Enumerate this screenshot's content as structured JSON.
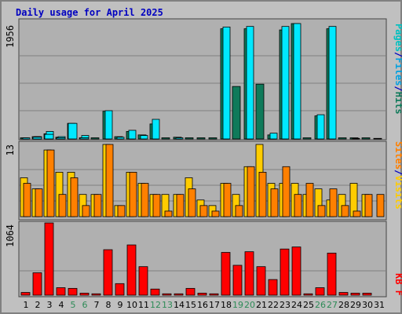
{
  "chart_data": [
    {
      "type": "bar",
      "title": "Daily usage for April 2025",
      "panel": "top",
      "y_max_label": "1956",
      "ylim": [
        0,
        2000
      ],
      "x": [
        "1",
        "2",
        "3",
        "4",
        "5",
        "6",
        "7",
        "8",
        "9",
        "10",
        "11",
        "12",
        "13",
        "14",
        "15",
        "16",
        "17",
        "18",
        "19",
        "20",
        "21",
        "22",
        "23",
        "24",
        "25",
        "26",
        "27",
        "28",
        "29",
        "30",
        "31"
      ],
      "series": [
        {
          "name": "Pages",
          "values": [
            20,
            40,
            130,
            40,
            0,
            60,
            0,
            490,
            30,
            150,
            60,
            340,
            0,
            20,
            0,
            0,
            0,
            1940,
            0,
            1950,
            0,
            100,
            1950,
            2000,
            0,
            420,
            1950,
            0,
            10,
            0,
            0
          ]
        },
        {
          "name": "Files",
          "values": [
            0,
            30,
            80,
            20,
            270,
            20,
            0,
            0,
            0,
            0,
            0,
            0,
            0,
            0,
            0,
            0,
            0,
            0,
            0,
            0,
            0,
            0,
            0,
            0,
            0,
            0,
            0,
            0,
            0,
            0,
            0
          ]
        },
        {
          "name": "Hits",
          "values": [
            20,
            40,
            90,
            30,
            270,
            20,
            20,
            480,
            40,
            130,
            70,
            260,
            20,
            30,
            20,
            20,
            20,
            1910,
            910,
            1910,
            950,
            70,
            1890,
            2000,
            20,
            400,
            1910,
            20,
            20,
            20,
            10
          ]
        }
      ],
      "legend": [
        "Pages",
        "/",
        "Files",
        "/",
        "Hits"
      ]
    },
    {
      "type": "bar",
      "panel": "middle",
      "y_max_label": "13",
      "ylim": [
        0,
        13
      ],
      "x": [
        "1",
        "2",
        "3",
        "4",
        "5",
        "6",
        "7",
        "8",
        "9",
        "10",
        "11",
        "12",
        "13",
        "14",
        "15",
        "16",
        "17",
        "18",
        "19",
        "20",
        "21",
        "22",
        "23",
        "24",
        "25",
        "26",
        "27",
        "28",
        "29",
        "30",
        "31"
      ],
      "series": [
        {
          "name": "Sites",
          "values": [
            6,
            5,
            12,
            4,
            7,
            2,
            4,
            13,
            2,
            8,
            6,
            4,
            1,
            4,
            5,
            2,
            1,
            6,
            2,
            9,
            8,
            5,
            9,
            4,
            6,
            2,
            5,
            2,
            1,
            4,
            4
          ]
        },
        {
          "name": "Visits",
          "values": [
            7,
            5,
            12,
            8,
            8,
            4,
            4,
            13,
            2,
            8,
            6,
            4,
            4,
            4,
            7,
            3,
            2,
            6,
            4,
            9,
            13,
            6,
            6,
            6,
            4,
            5,
            3,
            4,
            6,
            4,
            0
          ]
        }
      ],
      "legend": [
        "Sites",
        "/",
        "Visits"
      ]
    },
    {
      "type": "bar",
      "panel": "bottom",
      "y_max_label": "1064",
      "ylim": [
        0,
        1064
      ],
      "x": [
        "1",
        "2",
        "3",
        "4",
        "5",
        "6",
        "7",
        "8",
        "9",
        "10",
        "11",
        "12",
        "13",
        "14",
        "15",
        "16",
        "17",
        "18",
        "19",
        "20",
        "21",
        "22",
        "23",
        "24",
        "25",
        "26",
        "27",
        "28",
        "29",
        "30",
        "31"
      ],
      "series": [
        {
          "name": "KB F",
          "values": [
            40,
            330,
            1064,
            110,
            100,
            30,
            20,
            670,
            170,
            740,
            420,
            90,
            20,
            20,
            100,
            30,
            20,
            630,
            440,
            640,
            420,
            230,
            680,
            710,
            20,
            110,
            620,
            40,
            30,
            30,
            0
          ]
        }
      ],
      "legend": [
        "KB F"
      ]
    }
  ],
  "x_axis_labels": [
    "1",
    "2",
    "3",
    "4",
    "5",
    "6",
    "7",
    "8",
    "9",
    "10",
    "11",
    "12",
    "13",
    "14",
    "15",
    "16",
    "17",
    "18",
    "19",
    "20",
    "21",
    "22",
    "23",
    "24",
    "25",
    "26",
    "27",
    "28",
    "29",
    "30",
    "31"
  ],
  "weekend_days": [
    "5",
    "6",
    "12",
    "13",
    "19",
    "20",
    "26",
    "27"
  ],
  "colors": {
    "background": "#c0c0c0",
    "frame_border": "#808080",
    "title": "#0000c0",
    "pages": "#00c0c0",
    "pages_dark": "#1d6e64",
    "files": "#00e8ff",
    "hits": "#0f7a5a",
    "sites": "#ff8000",
    "visits": "#ffcc00",
    "kbytes": "#ff0000",
    "weekend_label": "#2e8b57",
    "weekday_label": "#000000"
  }
}
